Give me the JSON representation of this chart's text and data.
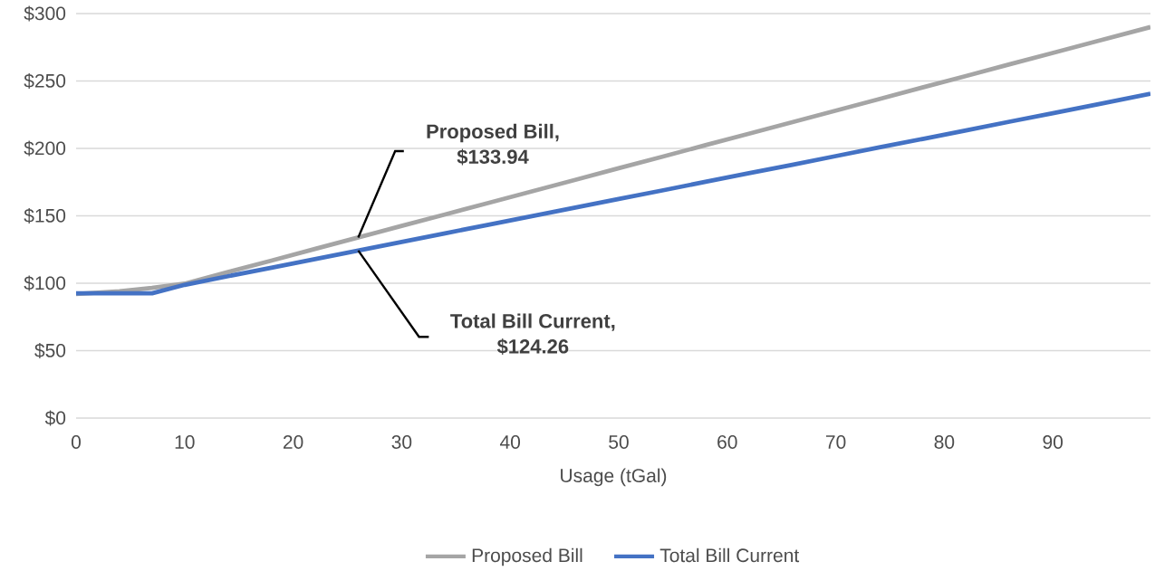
{
  "chart_data": {
    "type": "line",
    "xlabel": "Usage (tGal)",
    "x": [
      0,
      2,
      4,
      7,
      10,
      14,
      18,
      22,
      26,
      30,
      34,
      38,
      42,
      46,
      50,
      54,
      58,
      62,
      66,
      70,
      74,
      78,
      82,
      86,
      90,
      94,
      99
    ],
    "series": [
      {
        "name": "Proposed Bill",
        "color": "#a5a5a5",
        "values": [
          92,
          93,
          94,
          96.5,
          99.7,
          108.3,
          116.8,
          125.4,
          133.94,
          142.5,
          151.0,
          159.6,
          168.1,
          176.7,
          185.3,
          193.8,
          202.4,
          210.9,
          219.5,
          228.0,
          236.6,
          245.2,
          253.7,
          262.3,
          270.8,
          279.4,
          290
        ]
      },
      {
        "name": "Total Bill Current",
        "color": "#4472c4",
        "values": [
          92.5,
          92.5,
          92.5,
          92.5,
          98.8,
          105.2,
          111.5,
          117.9,
          124.26,
          130.6,
          137.0,
          143.4,
          149.7,
          156.1,
          162.5,
          168.8,
          175.2,
          181.6,
          187.9,
          194.3,
          200.7,
          207.0,
          213.4,
          219.8,
          226.1,
          232.5,
          240.5
        ]
      }
    ],
    "xlim": [
      0,
      99
    ],
    "xticks": [
      0,
      10,
      20,
      30,
      40,
      50,
      60,
      70,
      80,
      90
    ],
    "ylim": [
      0,
      300
    ],
    "yticks": [
      {
        "value": 0,
        "label": "$0"
      },
      {
        "value": 50,
        "label": "$50"
      },
      {
        "value": 100,
        "label": "$100"
      },
      {
        "value": 150,
        "label": "$150"
      },
      {
        "value": 200,
        "label": "$200"
      },
      {
        "value": 250,
        "label": "$250"
      },
      {
        "value": 300,
        "label": "$300"
      }
    ],
    "annotations": [
      {
        "text": "Proposed Bill, $133.94",
        "x": 26,
        "y": 133.94
      },
      {
        "text": "Total Bill Current, $124.26",
        "x": 26,
        "y": 124.26
      }
    ],
    "grid": "y",
    "legend": "bottom",
    "marker": "none",
    "line_style": "solid"
  }
}
